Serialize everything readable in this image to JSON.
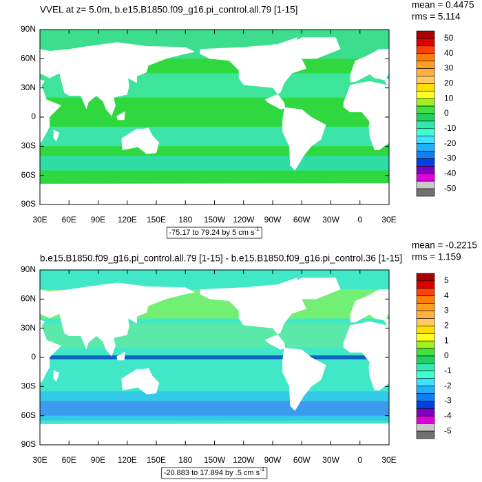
{
  "panels": [
    {
      "title": "VVEL at z=   5.0m, b.e15.B1850.f09_g16.pi_control.all.79 [1-15]",
      "stats": [
        "mean = 0.4475",
        "rms = 5.114"
      ],
      "lat_labels": [
        "90N",
        "60N",
        "30N",
        "0",
        "30S",
        "60S",
        "90S"
      ],
      "lon_labels": [
        "30E",
        "60E",
        "90E",
        "120E",
        "150E",
        "180",
        "150W",
        "120W",
        "90W",
        "60W",
        "30W",
        "0",
        "30E"
      ],
      "colorbar_labels": [
        "50",
        "40",
        "30",
        "20",
        "10",
        "0",
        "-10",
        "-20",
        "-30",
        "-40",
        "-50"
      ],
      "range_note": "-75.17 to 79.24 by 5 cm s",
      "range_note_exponent": "-1"
    },
    {
      "title": "b.e15.B1850.f09_g16.pi_control.all.79 [1-15] - b.e15.B1850.f09_g16.pi_control.36 [1-15]",
      "stats": [
        "mean = -0.2215",
        "rms = 1.159"
      ],
      "lat_labels": [
        "90N",
        "60N",
        "30N",
        "0",
        "30S",
        "60S",
        "90S"
      ],
      "lon_labels": [
        "30E",
        "60E",
        "90E",
        "120E",
        "150E",
        "180",
        "150W",
        "120W",
        "90W",
        "60W",
        "30W",
        "0",
        "30E"
      ],
      "colorbar_labels": [
        "5",
        "4",
        "3",
        "2",
        "1",
        "0",
        "-1",
        "-2",
        "-3",
        "-4",
        "-5"
      ],
      "range_note": "-20.883 to 17.894 by .5 cm s",
      "range_note_exponent": "-1"
    }
  ],
  "colorbar_colors": [
    "#aa0000",
    "#dd0000",
    "#ff4000",
    "#ff7f00",
    "#ff9f20",
    "#ffb040",
    "#ffc860",
    "#ffe000",
    "#ffff20",
    "#a0f020",
    "#40e040",
    "#20d060",
    "#30e8b0",
    "#40ffd0",
    "#40e0ff",
    "#20b0ff",
    "#1080f0",
    "#0040e0",
    "#8000c0",
    "#e000e0",
    "#c8c8c8",
    "#707070"
  ]
}
